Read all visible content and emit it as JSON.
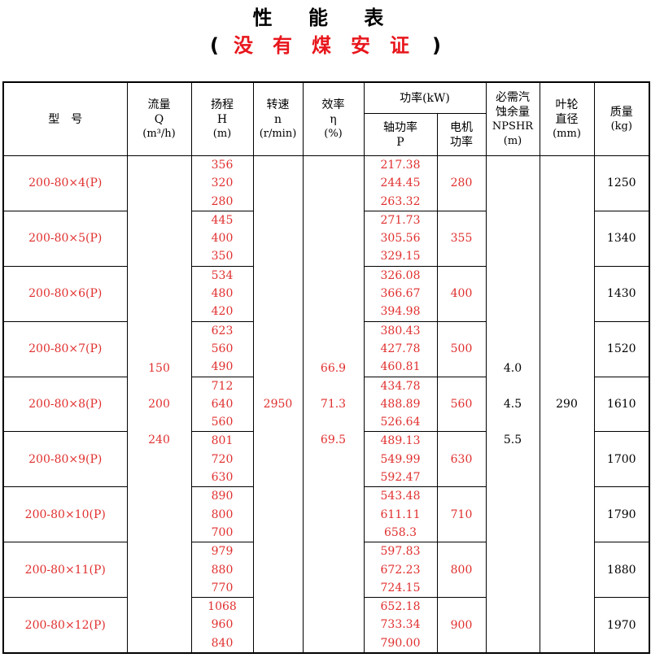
{
  "title": "性 能 表",
  "subtitle": {
    "open": "(",
    "text": "没有煤安证",
    "close": ")"
  },
  "colors": {
    "red": "#e0302f",
    "title_red": "#e8161c"
  },
  "headers": {
    "model": "型　号",
    "flow": [
      "流量",
      "Q",
      "(m³/h)"
    ],
    "head": [
      "扬程",
      "H",
      "(m)"
    ],
    "speed": [
      "转速",
      "n",
      "(r/min)"
    ],
    "efficiency": [
      "效率",
      "η",
      "(%)"
    ],
    "power": "功率(kW)",
    "shaft_power": [
      "轴功率",
      "P"
    ],
    "motor_power": [
      "电机",
      "功率"
    ],
    "npshr": [
      "必需汽",
      "蚀余量",
      "NPSHR",
      "(m)"
    ],
    "impeller": [
      "叶轮",
      "直径",
      "(mm)"
    ],
    "mass": [
      "质量",
      "(kg)"
    ]
  },
  "merged": {
    "flow": [
      "150",
      "200",
      "240"
    ],
    "speed": "2950",
    "efficiency": [
      "66.9",
      "71.3",
      "69.5"
    ],
    "npshr": [
      "4.0",
      "4.5",
      "5.5"
    ],
    "impeller": "290"
  },
  "rows": [
    {
      "model": "200-80×4(P)",
      "head": [
        "356",
        "320",
        "280"
      ],
      "shaft": [
        "217.38",
        "244.45",
        "263.32"
      ],
      "motor": "280",
      "mass": "1250"
    },
    {
      "model": "200-80×5(P)",
      "head": [
        "445",
        "400",
        "350"
      ],
      "shaft": [
        "271.73",
        "305.56",
        "329.15"
      ],
      "motor": "355",
      "mass": "1340"
    },
    {
      "model": "200-80×6(P)",
      "head": [
        "534",
        "480",
        "420"
      ],
      "shaft": [
        "326.08",
        "366.67",
        "394.98"
      ],
      "motor": "400",
      "mass": "1430"
    },
    {
      "model": "200-80×7(P)",
      "head": [
        "623",
        "560",
        "490"
      ],
      "shaft": [
        "380.43",
        "427.78",
        "460.81"
      ],
      "motor": "500",
      "mass": "1520"
    },
    {
      "model": "200-80×8(P)",
      "head": [
        "712",
        "640",
        "560"
      ],
      "shaft": [
        "434.78",
        "488.89",
        "526.64"
      ],
      "motor": "560",
      "mass": "1610"
    },
    {
      "model": "200-80×9(P)",
      "head": [
        "801",
        "720",
        "630"
      ],
      "shaft": [
        "489.13",
        "549.99",
        "592.47"
      ],
      "motor": "630",
      "mass": "1700"
    },
    {
      "model": "200-80×10(P)",
      "head": [
        "890",
        "800",
        "700"
      ],
      "shaft": [
        "543.48",
        "611.11",
        "658.3"
      ],
      "motor": "710",
      "mass": "1790"
    },
    {
      "model": "200-80×11(P)",
      "head": [
        "979",
        "880",
        "770"
      ],
      "shaft": [
        "597.83",
        "672.23",
        "724.15"
      ],
      "motor": "800",
      "mass": "1880"
    },
    {
      "model": "200-80×12(P)",
      "head": [
        "1068",
        "960",
        "840"
      ],
      "shaft": [
        "652.18",
        "733.34",
        "790.00"
      ],
      "motor": "900",
      "mass": "1970"
    }
  ]
}
